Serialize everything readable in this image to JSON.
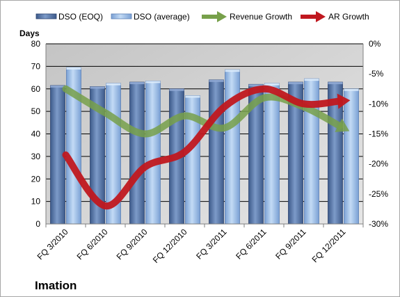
{
  "chart_data": {
    "type": "bar",
    "categories": [
      "FQ 3/2010",
      "FQ 6/2010",
      "FQ 9/2010",
      "FQ 12/2010",
      "FQ 3/2011",
      "FQ 6/2011",
      "FQ 9/2011",
      "FQ 12/2011"
    ],
    "series": [
      {
        "name": "DSO (EOQ)",
        "type": "bar",
        "axis": "left",
        "color": "#4f6fa0",
        "values": [
          61.5,
          61,
          63,
          60,
          64,
          62,
          63,
          63
        ]
      },
      {
        "name": "DSO (average)",
        "type": "bar",
        "axis": "left",
        "color": "#8fb4e3",
        "values": [
          69.5,
          62.5,
          63.5,
          57,
          68.5,
          62.5,
          64.5,
          60
        ]
      },
      {
        "name": "Revenue Growth",
        "type": "line",
        "axis": "right",
        "color": "#77a04a",
        "values": [
          -7.5,
          -11.5,
          -15,
          -12,
          -14,
          -9,
          -10.5,
          -14
        ]
      },
      {
        "name": "AR Growth",
        "type": "line",
        "axis": "right",
        "color": "#c0181f",
        "values": [
          -18.5,
          -27,
          -20.5,
          -18,
          -10.5,
          -7.5,
          -10,
          -9.5
        ]
      }
    ],
    "ylabel": "Days",
    "ylim": [
      0,
      80
    ],
    "y_ticks": [
      "0",
      "10",
      "20",
      "30",
      "40",
      "50",
      "60",
      "70",
      "80"
    ],
    "y2lim": [
      -30,
      0
    ],
    "y2_ticks": [
      "-30%",
      "-25%",
      "-20%",
      "-15%",
      "-10%",
      "-5%",
      "0%"
    ],
    "grid": true,
    "legend_position": "top",
    "company": "Imation",
    "colors": {
      "plot_background": "#c0c0c0",
      "frame_border": "#a6a6a6"
    }
  }
}
